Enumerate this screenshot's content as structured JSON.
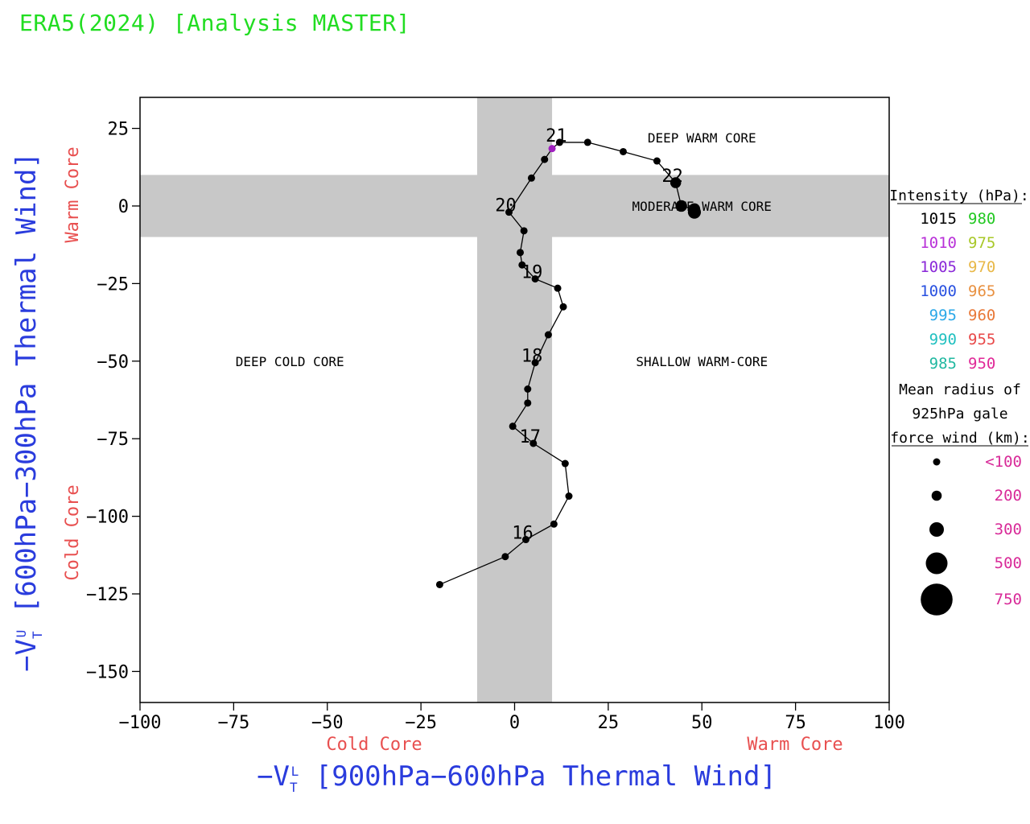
{
  "title": "ERA5(2024) [Analysis MASTER]",
  "colors": {
    "title": "#22dd22",
    "axis_label": "#2a3cdd",
    "core_label": "#e85050",
    "band": "#c8c8c8",
    "track": "#000000",
    "highlight_point": "#a020c0"
  },
  "chart_data": {
    "type": "scatter",
    "title": "ERA5(2024) [Analysis MASTER]",
    "xlabel": "-VT L [900hPa-600hPa Thermal Wind]",
    "ylabel": "-VT U [600hPa-300hPa Thermal Wind]",
    "xlabel_parts": {
      "pre": "−V",
      "sub": "T",
      "sup": "L",
      "post": " [900hPa−600hPa Thermal Wind]"
    },
    "ylabel_parts": {
      "pre": "−V",
      "sub": "T",
      "sup": "U",
      "post": " [600hPa−300hPa Thermal Wind]"
    },
    "xlim": [
      -100,
      100
    ],
    "ylim": [
      -160,
      35
    ],
    "xticks": [
      -100,
      -75,
      -50,
      -25,
      0,
      25,
      50,
      75,
      100
    ],
    "yticks": [
      25,
      0,
      -25,
      -50,
      -75,
      -100,
      -125,
      -150
    ],
    "xtick_labels": [
      "−100",
      "−75",
      "−50",
      "−25",
      "0",
      "25",
      "50",
      "75",
      "100"
    ],
    "ytick_labels": [
      "25",
      "0",
      "−25",
      "−50",
      "−75",
      "−100",
      "−125",
      "−150"
    ],
    "x_side_labels": {
      "left": "Cold Core",
      "right": "Warm Core"
    },
    "y_side_labels": {
      "bottom": "Cold Core",
      "top": "Warm Core"
    },
    "bands": {
      "vertical_x": [
        -10,
        10
      ],
      "horizontal_y": [
        -10,
        10
      ]
    },
    "quadrant_labels": [
      {
        "text": "DEEP WARM CORE",
        "x": 50,
        "y": 22
      },
      {
        "text": "MODERATE WARM CORE",
        "x": 50,
        "y": 0
      },
      {
        "text": "DEEP COLD CORE",
        "x": -60,
        "y": -50
      },
      {
        "text": "SHALLOW WARM-CORE",
        "x": 50,
        "y": -50
      }
    ],
    "series": [
      {
        "points": [
          {
            "x": -20,
            "y": -122,
            "r": 1
          },
          {
            "x": -2.5,
            "y": -113,
            "r": 1
          },
          {
            "x": 3,
            "y": -107.5,
            "r": 1,
            "label": "16"
          },
          {
            "x": 10.5,
            "y": -102.5,
            "r": 1
          },
          {
            "x": 14.5,
            "y": -93.5,
            "r": 1
          },
          {
            "x": 13.5,
            "y": -83,
            "r": 1
          },
          {
            "x": 5,
            "y": -76.5,
            "r": 1,
            "label": "17"
          },
          {
            "x": -0.5,
            "y": -71,
            "r": 1
          },
          {
            "x": 3.5,
            "y": -63.5,
            "r": 1
          },
          {
            "x": 3.5,
            "y": -59,
            "r": 1
          },
          {
            "x": 5.5,
            "y": -50.5,
            "r": 1,
            "label": "18"
          },
          {
            "x": 9,
            "y": -41.5,
            "r": 1
          },
          {
            "x": 13,
            "y": -32.5,
            "r": 1
          },
          {
            "x": 11.5,
            "y": -26.5,
            "r": 1
          },
          {
            "x": 5.5,
            "y": -23.5,
            "r": 1,
            "label": "19"
          },
          {
            "x": 2,
            "y": -19,
            "r": 1
          },
          {
            "x": 1.5,
            "y": -15,
            "r": 1
          },
          {
            "x": 2.5,
            "y": -8,
            "r": 1
          },
          {
            "x": -1.5,
            "y": -2,
            "r": 1,
            "label": "20"
          },
          {
            "x": 4.5,
            "y": 9,
            "r": 1
          },
          {
            "x": 8,
            "y": 15,
            "r": 1
          },
          {
            "x": 10,
            "y": 18.5,
            "r": 1,
            "color": "#a020c0"
          },
          {
            "x": 12,
            "y": 20.5,
            "r": 1,
            "label": "21"
          },
          {
            "x": 19.5,
            "y": 20.5,
            "r": 1
          },
          {
            "x": 29,
            "y": 17.5,
            "r": 1
          },
          {
            "x": 38,
            "y": 14.5,
            "r": 1
          },
          {
            "x": 43,
            "y": 7.5,
            "r": 1.5,
            "label": "22"
          },
          {
            "x": 44.5,
            "y": 0,
            "r": 1.6
          },
          {
            "x": 48,
            "y": -1,
            "r": 1.6
          },
          {
            "x": 48,
            "y": -2,
            "r": 1.8
          }
        ]
      }
    ]
  },
  "legend": {
    "intensity_title": "Intensity (hPa):",
    "intensity_rows": [
      {
        "left": "1015",
        "left_color": "#000000",
        "right": "980",
        "right_color": "#22c822"
      },
      {
        "left": "1010",
        "left_color": "#b830d8",
        "right": "975",
        "right_color": "#a8c828"
      },
      {
        "left": "1005",
        "left_color": "#8a28d8",
        "right": "970",
        "right_color": "#e8b848"
      },
      {
        "left": "1000",
        "left_color": "#2850e0",
        "right": "965",
        "right_color": "#e89040"
      },
      {
        "left": "995",
        "left_color": "#2aa8e8",
        "right": "960",
        "right_color": "#e87838"
      },
      {
        "left": "990",
        "left_color": "#20c0c0",
        "right": "955",
        "right_color": "#e84848"
      },
      {
        "left": "985",
        "left_color": "#20b8a0",
        "right": "950",
        "right_color": "#e02898"
      }
    ],
    "radius_title": [
      "Mean radius of",
      "925hPa gale",
      "force wind (km):"
    ],
    "radius_rows": [
      {
        "label": "<100",
        "size": 1
      },
      {
        "label": "200",
        "size": 1.4
      },
      {
        "label": "300",
        "size": 2
      },
      {
        "label": "500",
        "size": 3
      },
      {
        "label": "750",
        "size": 4.4
      }
    ],
    "radius_label_color": "#d82a98"
  }
}
